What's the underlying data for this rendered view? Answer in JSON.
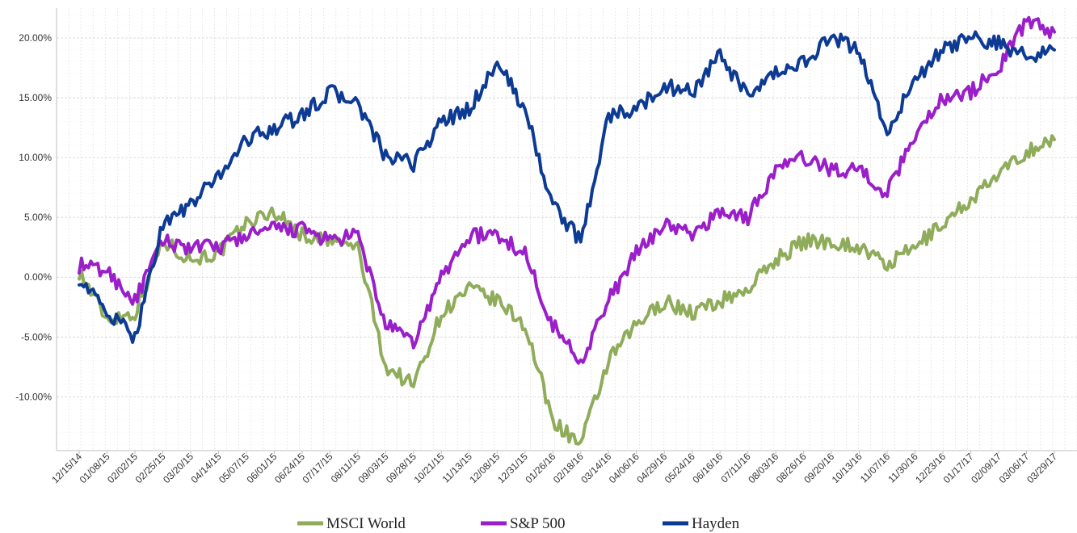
{
  "chart_data": {
    "type": "line",
    "title": "",
    "xlabel": "",
    "ylabel": "",
    "ylim": [
      -14.5,
      22.5
    ],
    "yticks": [
      -10,
      -5,
      0,
      5,
      10,
      15,
      20
    ],
    "ytick_labels": [
      "-10.00%",
      "-5.00%",
      "0.00%",
      "5.00%",
      "10.00%",
      "15.00%",
      "20.00%"
    ],
    "x": [
      "12/15/14",
      "01/08/15",
      "02/02/15",
      "02/25/15",
      "03/20/15",
      "04/14/15",
      "05/07/15",
      "06/01/15",
      "06/24/15",
      "07/17/15",
      "08/11/15",
      "09/03/15",
      "09/28/15",
      "10/21/15",
      "11/13/15",
      "12/08/15",
      "12/31/15",
      "01/26/16",
      "02/18/16",
      "03/14/16",
      "04/06/16",
      "04/29/16",
      "05/24/16",
      "06/16/16",
      "07/11/16",
      "08/03/16",
      "08/26/16",
      "09/20/16",
      "10/13/16",
      "11/07/16",
      "11/30/16",
      "12/23/16",
      "01/17/17",
      "02/09/17",
      "03/06/17",
      "03/29/17"
    ],
    "grid": true,
    "legend_position": "bottom",
    "series": [
      {
        "name": "MSCI World",
        "color": "#8fac5a",
        "values": [
          0.5,
          -3.5,
          -3.0,
          3.0,
          1.5,
          2.0,
          4.5,
          5.5,
          3.5,
          3.0,
          2.5,
          -7.5,
          -9.0,
          -3.0,
          -1.0,
          -2.0,
          -4.0,
          -12.0,
          -14.0,
          -7.0,
          -4.0,
          -2.0,
          -3.0,
          -2.0,
          -1.0,
          1.5,
          3.0,
          3.0,
          2.5,
          1.0,
          2.5,
          4.5,
          6.5,
          8.5,
          10.5,
          11.5
        ]
      },
      {
        "name": "S&P 500",
        "color": "#9a1fc9",
        "values": [
          1.0,
          0.5,
          -2.0,
          3.0,
          2.5,
          2.5,
          3.5,
          4.0,
          4.0,
          3.0,
          3.5,
          -4.0,
          -5.5,
          0.0,
          3.5,
          3.5,
          2.0,
          -4.0,
          -7.0,
          -2.0,
          2.0,
          4.5,
          3.5,
          5.5,
          5.0,
          9.0,
          10.0,
          9.0,
          9.0,
          7.0,
          12.0,
          15.0,
          15.5,
          17.5,
          21.5,
          20.5
        ]
      },
      {
        "name": "Hayden",
        "color": "#0d3b94",
        "values": [
          0.0,
          -3.0,
          -5.0,
          4.5,
          6.0,
          8.5,
          11.5,
          12.5,
          13.5,
          15.5,
          14.5,
          10.0,
          9.5,
          13.0,
          14.0,
          18.0,
          14.0,
          6.0,
          3.0,
          13.5,
          14.0,
          16.0,
          15.5,
          18.5,
          15.0,
          17.0,
          18.0,
          20.0,
          19.0,
          12.0,
          16.5,
          19.0,
          20.0,
          19.5,
          18.5,
          19.0
        ]
      }
    ]
  }
}
